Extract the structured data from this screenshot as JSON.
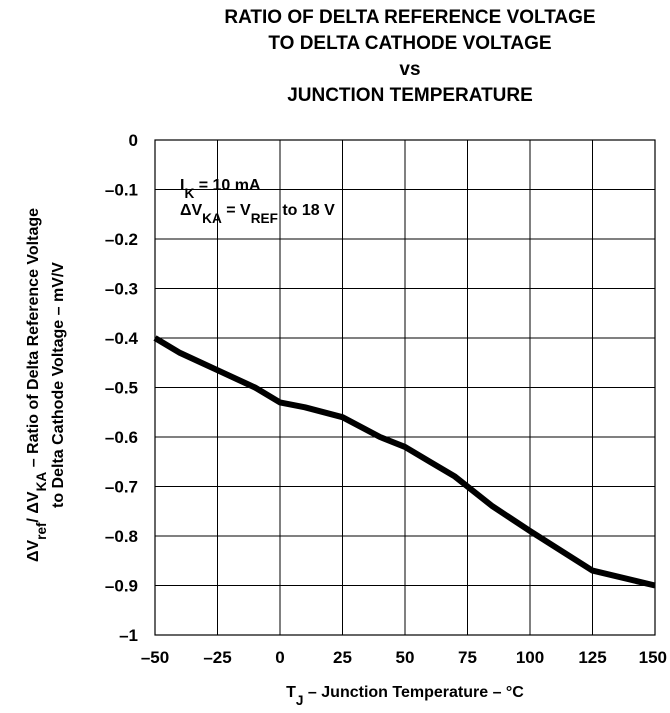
{
  "title_lines": [
    "RATIO OF DELTA REFERENCE VOLTAGE",
    "TO DELTA CATHODE VOLTAGE",
    "vs",
    "JUNCTION TEMPERATURE"
  ],
  "chart_data": {
    "type": "line",
    "title": "RATIO OF DELTA REFERENCE VOLTAGE TO DELTA CATHODE VOLTAGE vs JUNCTION TEMPERATURE",
    "xlabel": "TJ – Junction Temperature – °C",
    "ylabel": "ΔVref/ ΔVKA – Ratio of Delta Reference Voltage to Delta Cathode Voltage – mV/V",
    "xlim": [
      -50,
      150
    ],
    "ylim": [
      -1,
      0
    ],
    "grid": true,
    "x_ticks": [
      -50,
      -25,
      0,
      25,
      50,
      75,
      100,
      125,
      150
    ],
    "x_tick_labels": [
      "–50",
      "–25",
      "0",
      "25",
      "50",
      "75",
      "100",
      "125",
      "150"
    ],
    "y_ticks": [
      0,
      -0.1,
      -0.2,
      -0.3,
      -0.4,
      -0.5,
      -0.6,
      -0.7,
      -0.8,
      -0.9,
      -1
    ],
    "y_tick_labels": [
      "0",
      "–0.1",
      "–0.2",
      "–0.3",
      "–0.4",
      "–0.5",
      "–0.6",
      "–0.7",
      "–0.8",
      "–0.9",
      "–1"
    ],
    "series": [
      {
        "x": [
          -50,
          -40,
          -25,
          -10,
          0,
          10,
          25,
          40,
          50,
          60,
          70,
          85,
          100,
          125,
          150
        ],
        "y": [
          -0.4,
          -0.43,
          -0.465,
          -0.5,
          -0.53,
          -0.54,
          -0.56,
          -0.6,
          -0.62,
          -0.65,
          -0.68,
          -0.74,
          -0.79,
          -0.87,
          -0.9
        ],
        "color": "#000000"
      }
    ],
    "annotations": [
      {
        "parts": [
          {
            "t": "I"
          },
          {
            "t": "K",
            "sub": true
          },
          {
            "t": " = 10 mA"
          }
        ]
      },
      {
        "parts": [
          {
            "t": "ΔV"
          },
          {
            "t": "KA",
            "sub": true
          },
          {
            "t": " = V"
          },
          {
            "t": "REF",
            "sub": true
          },
          {
            "t": " to 18 V"
          }
        ]
      }
    ],
    "xlabel_parts": [
      {
        "t": "T"
      },
      {
        "t": "J",
        "sub": true
      },
      {
        "t": " – Junction Temperature – °C"
      }
    ],
    "ylabel_lines": [
      [
        {
          "t": "ΔV"
        },
        {
          "t": "ref",
          "sub": true
        },
        {
          "t": "/ ΔV"
        },
        {
          "t": "KA",
          "sub": true
        },
        {
          "t": " – Ratio of Delta Reference Voltage"
        }
      ],
      [
        {
          "t": "to Delta Cathode Voltage – mV/V"
        }
      ]
    ]
  }
}
